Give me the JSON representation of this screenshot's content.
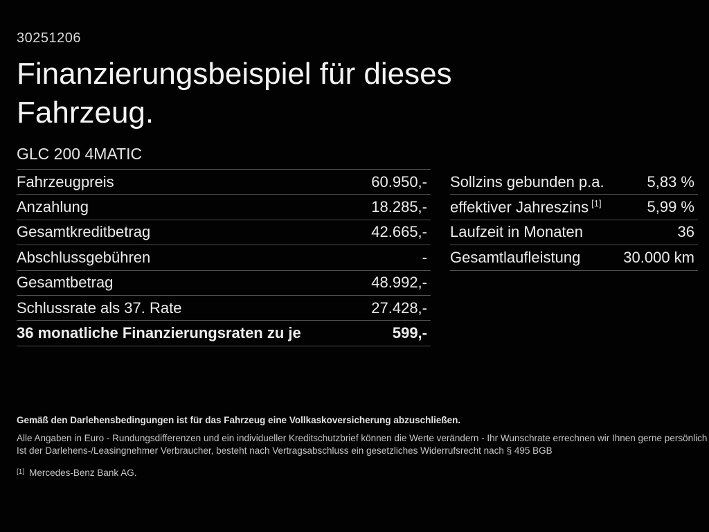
{
  "page": {
    "ref_number": "30251206",
    "title_lines": [
      "Finanzierungsbeispiel für dieses",
      "Fahrzeug."
    ],
    "vehicle_model": "GLC 200 4MATIC"
  },
  "finance_table": {
    "rows": [
      {
        "label": "Fahrzeugpreis",
        "value": "60.950,-"
      },
      {
        "label": "Anzahlung",
        "value": "18.285,-"
      },
      {
        "label": "Gesamtkreditbetrag",
        "value": "42.665,-"
      },
      {
        "label": "Abschlussgebühren",
        "value": "-"
      },
      {
        "label": "Gesamtbetrag",
        "value": "48.992,-"
      },
      {
        "label": "Schlussrate als 37. Rate",
        "value": "27.428,-"
      },
      {
        "label": "36 monatliche Finanzierungsraten zu je",
        "value": "599,-"
      }
    ]
  },
  "conditions_table": {
    "rows": [
      {
        "label": "Sollzins gebunden p.a.",
        "label_sup": "",
        "value": "5,83 %"
      },
      {
        "label": "effektiver Jahreszins",
        "label_sup": "[1]",
        "value": "5,99 %"
      },
      {
        "label": "Laufzeit in Monaten",
        "label_sup": "",
        "value": "36"
      },
      {
        "label": "Gesamtlaufleistung",
        "label_sup": "",
        "value": "30.000 km"
      }
    ]
  },
  "footer": {
    "insurance_note": "Gemäß den Darlehensbedingungen ist für das Fahrzeug eine Vollkaskoversicherung abzuschließen.",
    "disclaimer_line1": "Alle Angaben in Euro - Rundungsdifferenzen und ein individueller Kreditschutzbrief können die Werte verändern - Ihr Wunschrate errechnen wir Ihnen gerne persönlich",
    "disclaimer_line2": "Ist der Darlehens-/Leasingnehmer Verbraucher, besteht nach Vertragsabschluss ein gesetzliches Widerrufsrecht nach § 495 BGB",
    "footnote_marker": "[1]",
    "footnote_text": "Mercedes-Benz Bank AG."
  },
  "colors": {
    "background": "#020202",
    "text_primary": "#ececec",
    "text_secondary": "#c7c7c7",
    "divider_line": "#4f4f4f"
  }
}
